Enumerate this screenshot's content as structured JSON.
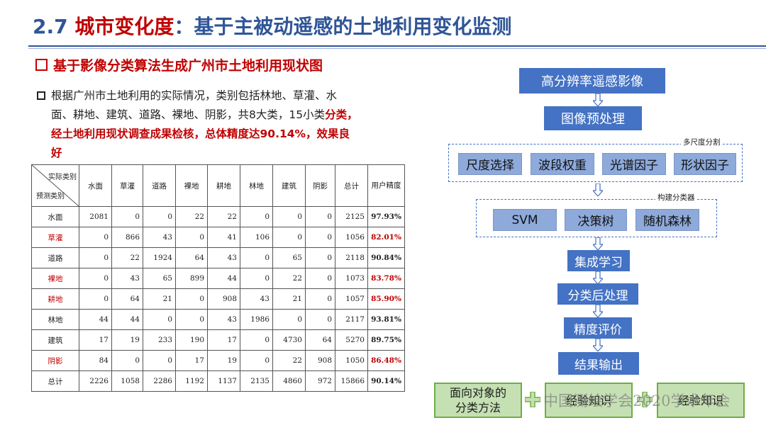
{
  "title": {
    "prefix": "2.7 ",
    "highlight": "城市变化度",
    "suffix": "：基于主被动遥感的土地利用变化监测"
  },
  "subtitle": "基于影像分类算法生成广州市土地利用现状图",
  "paragraph": {
    "line1": "根据广州市土地利用的实际情况，类别包括林地、草灌、水",
    "line2a": "面、耕地、建筑、道路、裸地、阴影，共8大类，15小类",
    "line2b": "分类，",
    "line3": "经土地利用现状调查成果检核，总体精度达90.14%，效果良",
    "line4": "好"
  },
  "table": {
    "corner_top": "实际类别",
    "corner_bottom": "预测类别",
    "columns": [
      "水面",
      "草灌",
      "道路",
      "裸地",
      "耕地",
      "林地",
      "建筑",
      "阴影",
      "总计"
    ],
    "acc_header": "用户精度",
    "rows": [
      {
        "name": "水面",
        "values": [
          "2081",
          "0",
          "0",
          "22",
          "22",
          "0",
          "0",
          "0",
          "2125"
        ],
        "accuracy": "97.93%",
        "red": false
      },
      {
        "name": "草灌",
        "values": [
          "0",
          "866",
          "43",
          "0",
          "41",
          "106",
          "0",
          "0",
          "1056"
        ],
        "accuracy": "82.01%",
        "red": true
      },
      {
        "name": "道路",
        "values": [
          "0",
          "22",
          "1924",
          "64",
          "43",
          "0",
          "65",
          "0",
          "2118"
        ],
        "accuracy": "90.84%",
        "red": false
      },
      {
        "name": "裸地",
        "values": [
          "0",
          "43",
          "65",
          "899",
          "44",
          "0",
          "22",
          "0",
          "1073"
        ],
        "accuracy": "83.78%",
        "red": true
      },
      {
        "name": "耕地",
        "values": [
          "0",
          "64",
          "21",
          "0",
          "908",
          "43",
          "21",
          "0",
          "1057"
        ],
        "accuracy": "85.90%",
        "red": true
      },
      {
        "name": "林地",
        "values": [
          "44",
          "44",
          "0",
          "0",
          "43",
          "1986",
          "0",
          "0",
          "2117"
        ],
        "accuracy": "93.81%",
        "red": false
      },
      {
        "name": "建筑",
        "values": [
          "17",
          "19",
          "233",
          "190",
          "17",
          "0",
          "4730",
          "64",
          "5270"
        ],
        "accuracy": "89.75%",
        "red": false
      },
      {
        "name": "阴影",
        "values": [
          "84",
          "0",
          "0",
          "17",
          "19",
          "0",
          "22",
          "908",
          "1050"
        ],
        "accuracy": "86.48%",
        "red": true
      },
      {
        "name": "总计",
        "values": [
          "2226",
          "1058",
          "2286",
          "1192",
          "1137",
          "2135",
          "4860",
          "972",
          "15866"
        ],
        "accuracy": "90.14%",
        "red": false
      }
    ]
  },
  "flow": {
    "step1": "高分辨率遥感影像",
    "step2": "图像预处理",
    "group1_label": "多尺度分割",
    "group1_items": [
      "尺度选择",
      "波段权重",
      "光谱因子",
      "形状因子"
    ],
    "group2_label": "构建分类器",
    "group2_items": [
      "SVM",
      "决策树",
      "随机森林"
    ],
    "step3": "集成学习",
    "step4": "分类后处理",
    "step5": "精度评价",
    "step6": "结果输出"
  },
  "bottom": {
    "box1": "面向对象的\n分类方法",
    "box2": "经验知识",
    "box3": "经验知识",
    "watermark": "中国测绘学会2020学术年会"
  },
  "colors": {
    "blue": "#4472c4",
    "light_blue": "#8eaadb",
    "red": "#c00000",
    "green_fill": "#c5e0b3",
    "green_border": "#70ad47",
    "title_blue": "#2f5597"
  }
}
